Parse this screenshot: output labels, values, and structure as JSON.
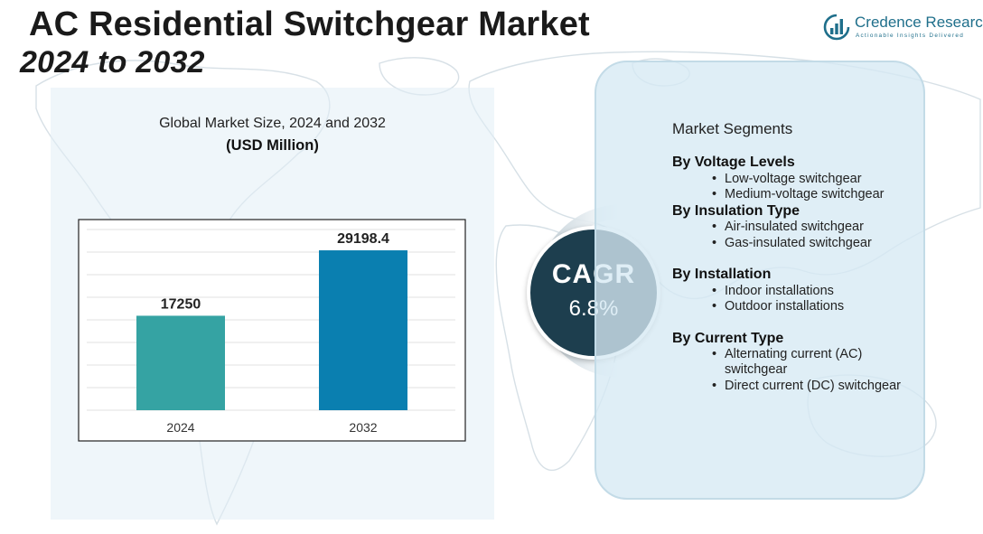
{
  "title": {
    "line1": "AC Residential Switchgear Market",
    "line2": "2024 to 2032"
  },
  "logo": {
    "name": "Credence Research",
    "tagline": "Actionable Insights Delivered",
    "icon": "bar-chart-circle-icon",
    "color": "#1f6f8b"
  },
  "chart_data": {
    "type": "bar",
    "title": "Global Market Size, 2024 and 2032",
    "subtitle": "(USD Million)",
    "categories": [
      "2024",
      "2032"
    ],
    "values": [
      17250,
      29198.4
    ],
    "data_labels": [
      "17250",
      "29198.4"
    ],
    "colors": [
      "#35a3a3",
      "#0a7fb0"
    ],
    "ylim": [
      0,
      33000
    ],
    "grid": true,
    "legend": "none"
  },
  "cagr": {
    "label": "CAGR",
    "value": "6.8%",
    "color": "#1d3e4e"
  },
  "segments": {
    "title": "Market Segments",
    "groups": [
      {
        "heading": "By Voltage Levels",
        "items": [
          "Low-voltage switchgear",
          "Medium-voltage switchgear"
        ]
      },
      {
        "heading": "By Insulation Type",
        "items": [
          "Air-insulated switchgear",
          "Gas-insulated switchgear"
        ]
      },
      {
        "heading": "By Installation",
        "items": [
          "Indoor installations",
          "Outdoor installations"
        ]
      },
      {
        "heading": "By Current Type",
        "items": [
          "Alternating current (AC) switchgear",
          "Direct current (DC) switchgear"
        ]
      }
    ]
  }
}
